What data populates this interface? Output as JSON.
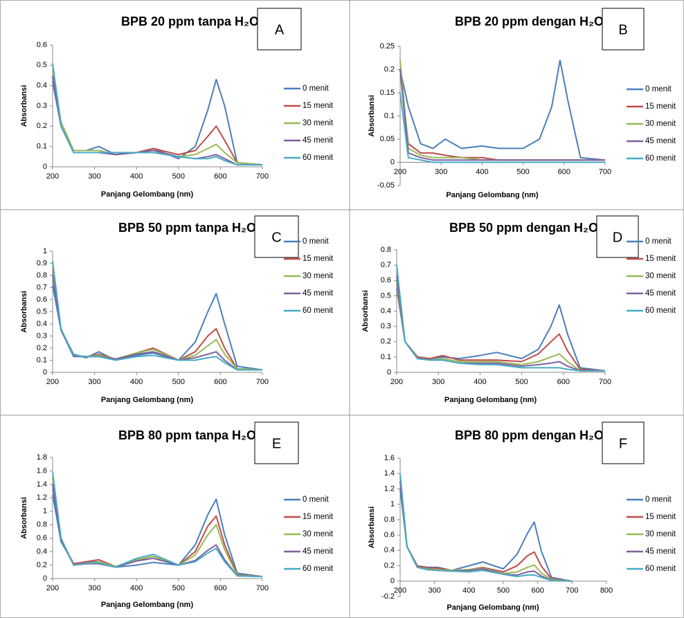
{
  "chart_data": [
    {
      "type": "line",
      "title": "BPB 20 ppm tanpa H₂O",
      "annotation": "A",
      "xlabel": "Panjang Gelombang (nm)",
      "ylabel": "Absorbansi",
      "x": [
        200,
        220,
        250,
        280,
        310,
        350,
        400,
        440,
        500,
        540,
        570,
        590,
        610,
        640,
        700
      ],
      "xlim": [
        200,
        700
      ],
      "xticks": [
        200,
        300,
        400,
        500,
        600,
        700
      ],
      "ylim": [
        0,
        0.6
      ],
      "yticks": [
        0,
        0.1,
        0.2,
        0.3,
        0.4,
        0.5,
        0.6
      ],
      "series": [
        {
          "name": "0 menit",
          "color": "#4a7ebb",
          "values": [
            0.42,
            0.2,
            0.08,
            0.08,
            0.1,
            0.06,
            0.07,
            0.09,
            0.04,
            0.1,
            0.28,
            0.43,
            0.3,
            0.02,
            0.01
          ]
        },
        {
          "name": "15 menit",
          "color": "#be4b48",
          "values": [
            0.45,
            0.22,
            0.08,
            0.08,
            0.08,
            0.06,
            0.07,
            0.09,
            0.06,
            0.08,
            0.15,
            0.2,
            0.13,
            0.02,
            0.01
          ]
        },
        {
          "name": "30 menit",
          "color": "#98b954",
          "values": [
            0.5,
            0.22,
            0.08,
            0.08,
            0.08,
            0.06,
            0.07,
            0.08,
            0.05,
            0.06,
            0.09,
            0.11,
            0.07,
            0.02,
            0.01
          ]
        },
        {
          "name": "45 menit",
          "color": "#7d60a0",
          "values": [
            0.44,
            0.2,
            0.07,
            0.07,
            0.07,
            0.06,
            0.07,
            0.08,
            0.05,
            0.04,
            0.05,
            0.06,
            0.04,
            0.01,
            0.01
          ]
        },
        {
          "name": "60 menit",
          "color": "#46aac5",
          "values": [
            0.51,
            0.2,
            0.07,
            0.07,
            0.07,
            0.07,
            0.07,
            0.07,
            0.05,
            0.04,
            0.04,
            0.05,
            0.03,
            0.01,
            0.01
          ]
        }
      ]
    },
    {
      "type": "line",
      "title": "BPB 20 ppm dengan H₂O",
      "annotation": "B",
      "xlabel": "Panjang Gelombang (nm)",
      "ylabel": "Absorbansi",
      "x": [
        200,
        220,
        250,
        280,
        310,
        350,
        400,
        440,
        500,
        540,
        570,
        590,
        610,
        640,
        700
      ],
      "xlim": [
        200,
        700
      ],
      "xticks": [
        200,
        300,
        400,
        500,
        600,
        700
      ],
      "ylim": [
        -0.05,
        0.25
      ],
      "yticks": [
        -0.05,
        0,
        0.05,
        0.1,
        0.15,
        0.2,
        0.25
      ],
      "series": [
        {
          "name": "0 menit",
          "color": "#4a7ebb",
          "values": [
            0.2,
            0.12,
            0.04,
            0.03,
            0.05,
            0.03,
            0.035,
            0.03,
            0.03,
            0.05,
            0.12,
            0.22,
            0.13,
            0.01,
            0.005
          ]
        },
        {
          "name": "15 menit",
          "color": "#be4b48",
          "values": [
            0.2,
            0.04,
            0.02,
            0.02,
            0.015,
            0.01,
            0.01,
            0.005,
            0.005,
            0.005,
            0.005,
            0.005,
            0.005,
            0.005,
            0.005
          ]
        },
        {
          "name": "30 menit",
          "color": "#98b954",
          "values": [
            0.22,
            0.03,
            0.015,
            0.01,
            0.01,
            0.01,
            0.005,
            0.005,
            0.005,
            0.005,
            0.005,
            0.005,
            0.005,
            0.005,
            0.005
          ]
        },
        {
          "name": "45 menit",
          "color": "#7d60a0",
          "values": [
            0.2,
            0.02,
            0.01,
            0.005,
            0.005,
            0.005,
            0.005,
            0.005,
            0.005,
            0.005,
            0.005,
            0.005,
            0.005,
            0.005,
            0.005
          ]
        },
        {
          "name": "60 menit",
          "color": "#46aac5",
          "values": [
            0.15,
            0.01,
            0.005,
            0,
            0,
            0,
            0,
            0,
            0,
            0,
            0,
            0,
            0,
            0,
            0
          ]
        }
      ]
    },
    {
      "type": "line",
      "title": "BPB 50 ppm tanpa H₂O",
      "annotation": "C",
      "xlabel": "Panjang Gelombang (nm)",
      "ylabel": "Absorbansi",
      "x": [
        200,
        220,
        250,
        280,
        310,
        350,
        400,
        440,
        500,
        540,
        570,
        590,
        610,
        640,
        700
      ],
      "xlim": [
        200,
        700
      ],
      "xticks": [
        200,
        300,
        400,
        500,
        600,
        700
      ],
      "ylim": [
        0,
        1
      ],
      "yticks": [
        0,
        0.1,
        0.2,
        0.3,
        0.4,
        0.5,
        0.6,
        0.7,
        0.8,
        0.9,
        1
      ],
      "series": [
        {
          "name": "0 menit",
          "color": "#4a7ebb",
          "values": [
            0.72,
            0.35,
            0.15,
            0.12,
            0.17,
            0.1,
            0.14,
            0.16,
            0.1,
            0.25,
            0.5,
            0.65,
            0.4,
            0.05,
            0.02
          ]
        },
        {
          "name": "15 menit",
          "color": "#be4b48",
          "values": [
            0.85,
            0.35,
            0.14,
            0.13,
            0.15,
            0.11,
            0.16,
            0.2,
            0.1,
            0.17,
            0.3,
            0.36,
            0.2,
            0.03,
            0.02
          ]
        },
        {
          "name": "30 menit",
          "color": "#98b954",
          "values": [
            0.88,
            0.35,
            0.14,
            0.13,
            0.14,
            0.11,
            0.16,
            0.19,
            0.1,
            0.14,
            0.22,
            0.27,
            0.15,
            0.03,
            0.02
          ]
        },
        {
          "name": "45 menit",
          "color": "#7d60a0",
          "values": [
            0.8,
            0.35,
            0.13,
            0.13,
            0.13,
            0.11,
            0.15,
            0.17,
            0.1,
            0.12,
            0.15,
            0.17,
            0.1,
            0.02,
            0.02
          ]
        },
        {
          "name": "60 menit",
          "color": "#46aac5",
          "values": [
            0.92,
            0.36,
            0.14,
            0.13,
            0.13,
            0.1,
            0.13,
            0.14,
            0.1,
            0.1,
            0.12,
            0.13,
            0.08,
            0.02,
            0.02
          ]
        }
      ]
    },
    {
      "type": "line",
      "title": "BPB 50 ppm dengan H₂O",
      "annotation": "D",
      "xlabel": "Panjang Gelombang (nm)",
      "ylabel": "Absorbansi",
      "x": [
        200,
        220,
        250,
        280,
        310,
        350,
        400,
        440,
        500,
        540,
        570,
        590,
        610,
        640,
        700
      ],
      "xlim": [
        200,
        700
      ],
      "xticks": [
        200,
        300,
        400,
        500,
        600,
        700
      ],
      "ylim": [
        0,
        0.8
      ],
      "yticks": [
        0,
        0.1,
        0.2,
        0.3,
        0.4,
        0.5,
        0.6,
        0.7,
        0.8
      ],
      "series": [
        {
          "name": "0 menit",
          "color": "#4a7ebb",
          "values": [
            0.55,
            0.2,
            0.1,
            0.09,
            0.1,
            0.09,
            0.11,
            0.13,
            0.09,
            0.15,
            0.3,
            0.44,
            0.25,
            0.03,
            0.01
          ]
        },
        {
          "name": "15 menit",
          "color": "#be4b48",
          "values": [
            0.58,
            0.2,
            0.1,
            0.09,
            0.11,
            0.08,
            0.08,
            0.08,
            0.07,
            0.12,
            0.2,
            0.25,
            0.14,
            0.02,
            0.01
          ]
        },
        {
          "name": "30 menit",
          "color": "#98b954",
          "values": [
            0.6,
            0.2,
            0.09,
            0.08,
            0.09,
            0.07,
            0.07,
            0.07,
            0.05,
            0.07,
            0.1,
            0.12,
            0.07,
            0.01,
            0.01
          ]
        },
        {
          "name": "45 menit",
          "color": "#7d60a0",
          "values": [
            0.63,
            0.2,
            0.09,
            0.08,
            0.08,
            0.06,
            0.06,
            0.06,
            0.04,
            0.05,
            0.06,
            0.07,
            0.04,
            0.01,
            0.01
          ]
        },
        {
          "name": "60 menit",
          "color": "#46aac5",
          "values": [
            0.7,
            0.2,
            0.09,
            0.08,
            0.08,
            0.06,
            0.05,
            0.05,
            0.03,
            0.03,
            0.03,
            0.03,
            0.02,
            0.01,
            0.01
          ]
        }
      ]
    },
    {
      "type": "line",
      "title": "BPB 80 ppm tanpa H₂O",
      "annotation": "E",
      "xlabel": "Panjang Gelombang (nm)",
      "ylabel": "Absorbansi",
      "x": [
        200,
        220,
        250,
        280,
        310,
        350,
        400,
        440,
        500,
        540,
        570,
        590,
        610,
        640,
        700
      ],
      "xlim": [
        200,
        700
      ],
      "xticks": [
        200,
        300,
        400,
        500,
        600,
        700
      ],
      "ylim": [
        0,
        1.8
      ],
      "yticks": [
        0,
        0.2,
        0.4,
        0.6,
        0.8,
        1,
        1.2,
        1.4,
        1.6,
        1.8
      ],
      "series": [
        {
          "name": "0 menit",
          "color": "#4a7ebb",
          "values": [
            1.25,
            0.55,
            0.22,
            0.25,
            0.25,
            0.17,
            0.2,
            0.24,
            0.2,
            0.5,
            0.95,
            1.18,
            0.65,
            0.08,
            0.03
          ]
        },
        {
          "name": "15 menit",
          "color": "#be4b48",
          "values": [
            1.4,
            0.58,
            0.22,
            0.25,
            0.28,
            0.18,
            0.27,
            0.33,
            0.2,
            0.4,
            0.78,
            0.93,
            0.5,
            0.06,
            0.03
          ]
        },
        {
          "name": "30 menit",
          "color": "#98b954",
          "values": [
            1.5,
            0.6,
            0.2,
            0.23,
            0.25,
            0.18,
            0.28,
            0.33,
            0.2,
            0.35,
            0.65,
            0.8,
            0.43,
            0.05,
            0.03
          ]
        },
        {
          "name": "45 menit",
          "color": "#7d60a0",
          "values": [
            1.4,
            0.58,
            0.2,
            0.22,
            0.22,
            0.17,
            0.26,
            0.3,
            0.2,
            0.27,
            0.42,
            0.5,
            0.28,
            0.04,
            0.03
          ]
        },
        {
          "name": "60 menit",
          "color": "#46aac5",
          "values": [
            1.58,
            0.6,
            0.2,
            0.23,
            0.23,
            0.17,
            0.3,
            0.36,
            0.2,
            0.25,
            0.38,
            0.45,
            0.25,
            0.04,
            0.03
          ]
        }
      ]
    },
    {
      "type": "line",
      "title": "BPB 80 ppm dengan H₂O",
      "annotation": "F",
      "xlabel": "Panjang Gelombang (nm)",
      "ylabel": "Absorbansi",
      "x": [
        200,
        220,
        250,
        280,
        310,
        350,
        400,
        440,
        500,
        540,
        570,
        590,
        610,
        640,
        700
      ],
      "xlim": [
        200,
        800
      ],
      "xticks": [
        200,
        300,
        400,
        500,
        600,
        700,
        800
      ],
      "ylim": [
        -0.2,
        1.6
      ],
      "yticks": [
        -0.2,
        0,
        0.2,
        0.4,
        0.6,
        0.8,
        1,
        1.2,
        1.4,
        1.6
      ],
      "series": [
        {
          "name": "0 menit",
          "color": "#4a7ebb",
          "values": [
            1.2,
            0.45,
            0.2,
            0.18,
            0.18,
            0.14,
            0.2,
            0.25,
            0.16,
            0.35,
            0.62,
            0.77,
            0.4,
            0.05,
            0
          ]
        },
        {
          "name": "15 menit",
          "color": "#be4b48",
          "values": [
            1.3,
            0.45,
            0.2,
            0.17,
            0.17,
            0.14,
            0.15,
            0.18,
            0.12,
            0.2,
            0.33,
            0.38,
            0.2,
            0.03,
            0
          ]
        },
        {
          "name": "30 menit",
          "color": "#98b954",
          "values": [
            1.35,
            0.45,
            0.18,
            0.16,
            0.15,
            0.14,
            0.15,
            0.17,
            0.1,
            0.12,
            0.18,
            0.21,
            0.11,
            0.02,
            0
          ]
        },
        {
          "name": "45 menit",
          "color": "#7d60a0",
          "values": [
            1.3,
            0.45,
            0.18,
            0.15,
            0.14,
            0.13,
            0.14,
            0.16,
            0.09,
            0.08,
            0.12,
            0.13,
            0.07,
            0.01,
            0
          ]
        },
        {
          "name": "60 menit",
          "color": "#46aac5",
          "values": [
            1.4,
            0.45,
            0.18,
            0.15,
            0.14,
            0.13,
            0.12,
            0.14,
            0.09,
            0.06,
            0.08,
            0.08,
            0.05,
            0.01,
            0
          ]
        }
      ]
    }
  ]
}
